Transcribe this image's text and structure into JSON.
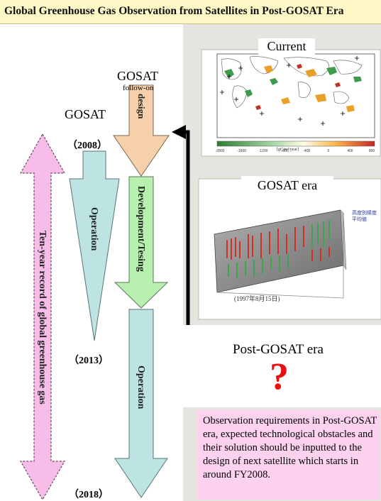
{
  "title": "Global Greenhouse Gas Observation from Satellites in Post-GOSAT Era",
  "left": {
    "followon_title": "GOSAT",
    "followon_subtitle": "follow-on",
    "gosat_label": "GOSAT",
    "year_2008": "（2008）",
    "year_2013": "（2013）",
    "year_2018": "（2018）",
    "design": "design",
    "operation1": "Operation",
    "development": "Development/Tesing",
    "operation2": "Operation",
    "ten_year": "Ten-year record of global greenhouse gas"
  },
  "right": {
    "current_label": "Current",
    "gosat_era_label": "GOSAT era",
    "post_label": "Post-GOSAT era",
    "question": "?",
    "map_colorbar_ticks": [
      "-2800",
      "-1600",
      "-1200",
      "-800",
      "-400",
      "0",
      "400",
      "800"
    ],
    "map_unit": "[gC/m²/year]",
    "plot_caption": "(1997年8月15日)",
    "plot_legend": "高度別緯度\n平均値"
  },
  "note": "Observation requirements in Post-GOSAT era, expected technological obstacles and their solution should be inputted to the design of next satellite which starts in around FY2008.",
  "colors": {
    "title_bg": "#fef8c6",
    "panel_bg": "#e3e5de",
    "design_arrow": "#f5d0aa",
    "development_arrow": "#b8f0b0",
    "operation_arrow": "#bde3e3",
    "ten_year_arrow": "#f7bce8",
    "note_bg": "#fdd2ee",
    "question_mark": "#e81010"
  }
}
